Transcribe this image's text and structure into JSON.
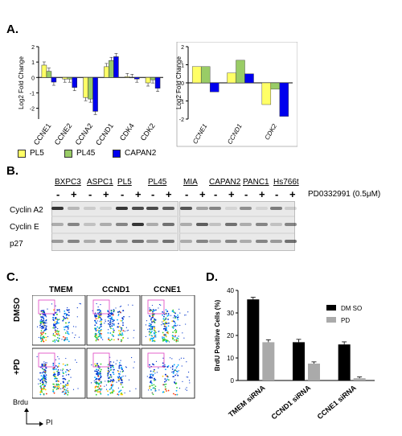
{
  "panels": {
    "a": "A.",
    "b": "B.",
    "c": "C.",
    "d": "D."
  },
  "panel_a": {
    "ylabel": "Log2 Fold Change",
    "legend": [
      {
        "name": "PL5",
        "color": "#ffff66"
      },
      {
        "name": "PL45",
        "color": "#99cc66"
      },
      {
        "name": "CAPAN2",
        "color": "#0000ee"
      }
    ]
  },
  "chart_data": [
    {
      "type": "bar",
      "categories": [
        "CCNE1",
        "CCNE2",
        "CCNA2",
        "CCND1",
        "CDK4",
        "CDK2"
      ],
      "series": [
        {
          "name": "PL5",
          "values": [
            0.8,
            -0.1,
            -1.3,
            0.7,
            0.05,
            -0.35
          ]
        },
        {
          "name": "PL45",
          "values": [
            0.4,
            -0.1,
            -1.4,
            1.1,
            0.0,
            -0.15
          ]
        },
        {
          "name": "CAPAN2",
          "values": [
            -0.3,
            -0.65,
            -2.2,
            1.35,
            -0.1,
            -0.7
          ]
        }
      ],
      "ylabel": "Log2 Fold Change",
      "ylim": [
        -2.7,
        2.0
      ],
      "yticks": [
        -2,
        -1,
        0,
        1,
        2
      ],
      "error_bars": true
    },
    {
      "type": "bar",
      "categories": [
        "CCNE1",
        "CCND1",
        "CDK2"
      ],
      "series": [
        {
          "name": "PL5",
          "values": [
            0.9,
            0.55,
            -1.2
          ]
        },
        {
          "name": "PL45",
          "values": [
            0.9,
            1.25,
            -0.35
          ]
        },
        {
          "name": "CAPAN2",
          "values": [
            -0.5,
            0.5,
            -1.85
          ]
        }
      ],
      "ylabel": "Log2 Fold Change",
      "ylim": [
        -2,
        2
      ],
      "yticks": [
        -2,
        -1,
        0,
        1,
        2
      ]
    },
    {
      "type": "bar",
      "categories": [
        "TMEM siRNA",
        "CCND1 siRNA",
        "CCNE1 siRNA"
      ],
      "series": [
        {
          "name": "DM SO",
          "values": [
            36,
            17,
            16
          ],
          "errors": [
            0.6,
            0.9,
            0.8
          ]
        },
        {
          "name": "PD",
          "values": [
            17,
            7.5,
            1
          ],
          "errors": [
            0.7,
            0.4,
            0.2
          ]
        }
      ],
      "ylabel": "BrdU Positive Cells (%)",
      "ylim": [
        0,
        40
      ],
      "yticks": [
        0,
        10,
        20,
        30,
        40
      ],
      "legend_position": "top-right"
    }
  ],
  "panel_b": {
    "cell_lines": [
      "BXPC3",
      "ASPC1",
      "PL5",
      "PL45",
      "MIA",
      "CAPAN2",
      "PANC1",
      "Hs766t"
    ],
    "treatment_minus": "-",
    "treatment_plus": "+",
    "treatment_label": "PD0332991 (0.5μM)",
    "rows": [
      "Cyclin A2",
      "Cyclin E",
      "p27"
    ]
  },
  "panel_c": {
    "columns": [
      "TMEM",
      "CCND1",
      "CCNE1"
    ],
    "rows": [
      "DMSO",
      "+PD"
    ],
    "y_axis": "Brdu",
    "x_axis": "PI"
  }
}
